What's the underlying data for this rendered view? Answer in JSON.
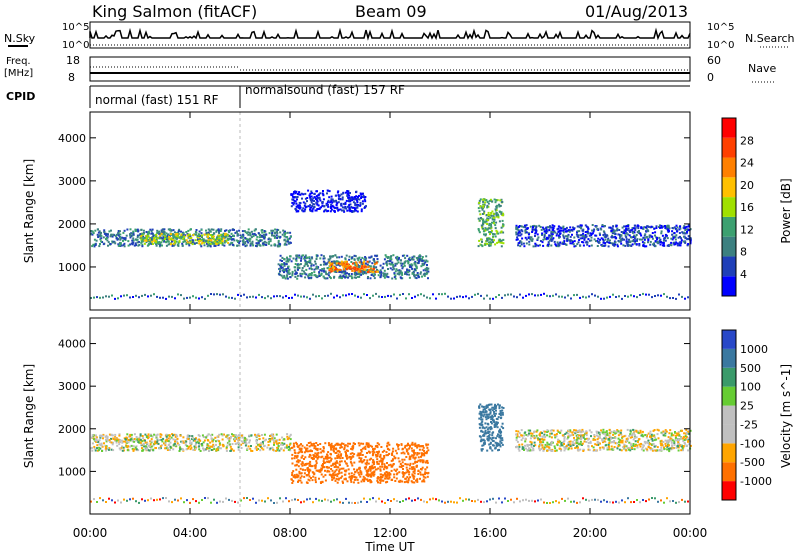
{
  "header": {
    "station": "King Salmon (fitACF)",
    "beam": "Beam 09",
    "date": "01/Aug/2013"
  },
  "top_panels": {
    "nsky_label": "N.Sky",
    "nsearch_label": "N.Search",
    "freq_label_top": "Freq.",
    "freq_label_bottom": "[MHz]",
    "nave_label": "Nave",
    "cpid_label": "CPID",
    "left_ticks_noise": [
      "10^5",
      "10^0"
    ],
    "right_ticks_noise": [
      "10^5",
      "10^0"
    ],
    "left_ticks_freq": [
      "18",
      "8"
    ],
    "right_ticks_nave": [
      "60",
      "0"
    ],
    "cpid_segments": [
      {
        "label": "normal (fast) 151 RF",
        "start_hour": 0,
        "end_hour": 6
      },
      {
        "label": "normalsound (fast) 157 RF",
        "start_hour": 6,
        "end_hour": 24
      }
    ]
  },
  "colors": {
    "power_scale": [
      "#0000ff",
      "#1f3fb8",
      "#3c8080",
      "#3ca070",
      "#a0e000",
      "#ffc000",
      "#ff8000",
      "#ff4000",
      "#ff0000"
    ],
    "velocity_scale": [
      "#2848c8",
      "#3a78a0",
      "#3a9a6a",
      "#66cc33",
      "#c0c0c0",
      "#c0c0c0",
      "#ffa500",
      "#ff7000",
      "#ff0000"
    ]
  },
  "chart_data": [
    {
      "type": "heatmap",
      "name": "power-panel",
      "ylabel": "Slant Range [km]",
      "xlabel": "",
      "ylim": [
        0,
        4600
      ],
      "xlim": [
        0,
        24
      ],
      "y_ticks": [
        "4000",
        "3000",
        "2000",
        "1000"
      ],
      "y_tick_values": [
        4000,
        3000,
        2000,
        1000
      ],
      "colorbar": {
        "label": "Power [dB]",
        "ticks": [
          "28",
          "24",
          "20",
          "16",
          "12",
          "8",
          "4"
        ]
      },
      "echo_regions": [
        {
          "start_hour": 0.0,
          "end_hour": 8.0,
          "range_low": 1500,
          "range_high": 1900,
          "power": 10
        },
        {
          "start_hour": 2.0,
          "end_hour": 5.5,
          "range_low": 1550,
          "range_high": 1800,
          "power": 20
        },
        {
          "start_hour": 7.5,
          "end_hour": 13.5,
          "range_low": 750,
          "range_high": 1300,
          "power": 10
        },
        {
          "start_hour": 9.5,
          "end_hour": 11.5,
          "range_low": 900,
          "range_high": 1150,
          "power": 26
        },
        {
          "start_hour": 15.5,
          "end_hour": 16.5,
          "range_low": 1500,
          "range_high": 2600,
          "power": 14
        },
        {
          "start_hour": 17.0,
          "end_hour": 24.0,
          "range_low": 1500,
          "range_high": 2000,
          "power": 8
        },
        {
          "start_hour": 8.0,
          "end_hour": 11.0,
          "range_low": 2300,
          "range_high": 2800,
          "power": 4
        }
      ]
    },
    {
      "type": "heatmap",
      "name": "velocity-panel",
      "ylabel": "Slant Range [km]",
      "xlabel": "Time UT",
      "ylim": [
        0,
        4600
      ],
      "xlim": [
        0,
        24
      ],
      "y_ticks": [
        "4000",
        "3000",
        "2000",
        "1000"
      ],
      "y_tick_values": [
        4000,
        3000,
        2000,
        1000
      ],
      "x_ticks": [
        "00:00",
        "04:00",
        "08:00",
        "12:00",
        "16:00",
        "20:00",
        "00:00"
      ],
      "x_tick_values": [
        0,
        4,
        8,
        12,
        16,
        20,
        24
      ],
      "colorbar": {
        "label": "Velocity [m s^-1]",
        "ticks": [
          "1000",
          "500",
          "100",
          "25",
          "-25",
          "-100",
          "-500",
          "-1000"
        ]
      },
      "echo_regions": [
        {
          "start_hour": 0.0,
          "end_hour": 8.0,
          "range_low": 1500,
          "range_high": 1900,
          "velocity": 0
        },
        {
          "start_hour": 8.0,
          "end_hour": 13.5,
          "range_low": 750,
          "range_high": 1700,
          "velocity": -300
        },
        {
          "start_hour": 15.5,
          "end_hour": 16.5,
          "range_low": 1500,
          "range_high": 2600,
          "velocity": 600
        },
        {
          "start_hour": 17.0,
          "end_hour": 24.0,
          "range_low": 1500,
          "range_high": 2000,
          "velocity": 0
        }
      ]
    }
  ]
}
